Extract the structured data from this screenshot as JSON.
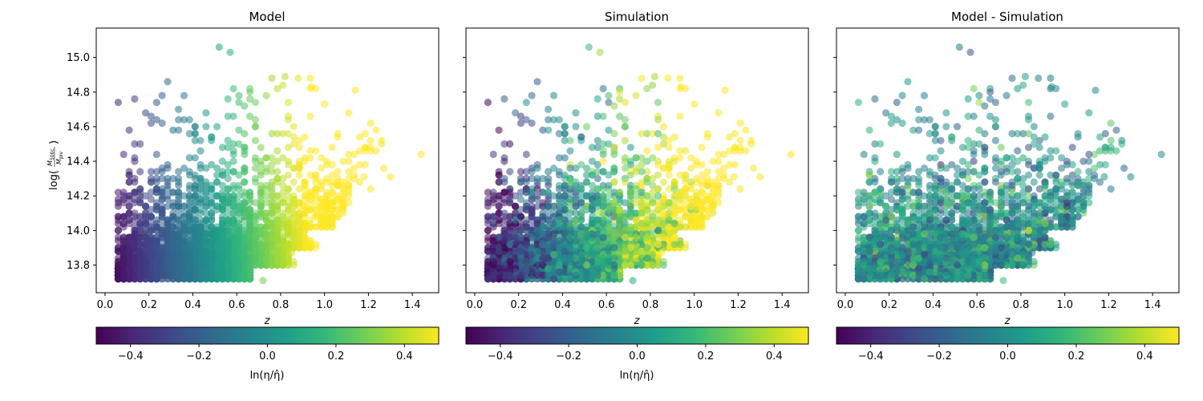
{
  "figure": {
    "ylabel": "log(M500c / Mpiv)",
    "ylabel_main": "log(",
    "ylabel_num": "M",
    "ylabel_num_sub": "500c",
    "ylabel_den": "M",
    "ylabel_den_sub": "piv",
    "ylabel_close": ")"
  },
  "chart_data": [
    {
      "type": "scatter",
      "title": "Model",
      "xlabel": "z",
      "xlim": [
        -0.04,
        1.52
      ],
      "ylim": [
        13.64,
        15.17
      ],
      "xticks": [
        "0.0",
        "0.2",
        "0.4",
        "0.6",
        "0.8",
        "1.0",
        "1.2",
        "1.4"
      ],
      "xtick_values": [
        0.0,
        0.2,
        0.4,
        0.6,
        0.8,
        1.0,
        1.2,
        1.4
      ],
      "yticks": [
        "13.8",
        "14.0",
        "14.2",
        "14.4",
        "14.6",
        "14.8",
        "15.0"
      ],
      "ytick_values": [
        13.8,
        14.0,
        14.2,
        14.4,
        14.6,
        14.8,
        15.0
      ],
      "show_yticklabels": true,
      "color_mode": "model",
      "colorbar": {
        "label": "ln(η/η̂)",
        "range": [
          -0.5,
          0.5
        ],
        "ticks": [
          "−0.4",
          "−0.2",
          "0.0",
          "0.2",
          "0.4"
        ],
        "tick_values": [
          -0.4,
          -0.2,
          0.0,
          0.2,
          0.4
        ]
      },
      "colormap": "viridis",
      "point_alpha": 0.55,
      "note": "~several thousand clusters; colour rises smoothly with z"
    },
    {
      "type": "scatter",
      "title": "Simulation",
      "xlabel": "z",
      "xlim": [
        -0.04,
        1.52
      ],
      "ylim": [
        13.64,
        15.17
      ],
      "xticks": [
        "0.0",
        "0.2",
        "0.4",
        "0.6",
        "0.8",
        "1.0",
        "1.2",
        "1.4"
      ],
      "xtick_values": [
        0.0,
        0.2,
        0.4,
        0.6,
        0.8,
        1.0,
        1.2,
        1.4
      ],
      "yticks": [
        "13.8",
        "14.0",
        "14.2",
        "14.4",
        "14.6",
        "14.8",
        "15.0"
      ],
      "ytick_values": [
        13.8,
        14.0,
        14.2,
        14.4,
        14.6,
        14.8,
        15.0
      ],
      "show_yticklabels": false,
      "color_mode": "simulation",
      "colorbar": {
        "label": "ln(η/η̂)",
        "range": [
          -0.5,
          0.5
        ],
        "ticks": [
          "−0.4",
          "−0.2",
          "0.0",
          "0.2",
          "0.4"
        ],
        "tick_values": [
          -0.4,
          -0.2,
          0.0,
          0.2,
          0.4
        ]
      },
      "colormap": "viridis",
      "point_alpha": 0.55
    },
    {
      "type": "scatter",
      "title": "Model - Simulation",
      "xlabel": "z",
      "xlim": [
        -0.04,
        1.52
      ],
      "ylim": [
        13.64,
        15.17
      ],
      "xticks": [
        "0.0",
        "0.2",
        "0.4",
        "0.6",
        "0.8",
        "1.0",
        "1.2",
        "1.4"
      ],
      "xtick_values": [
        0.0,
        0.2,
        0.4,
        0.6,
        0.8,
        1.0,
        1.2,
        1.4
      ],
      "yticks": [
        "13.8",
        "14.0",
        "14.2",
        "14.4",
        "14.6",
        "14.8",
        "15.0"
      ],
      "ytick_values": [
        13.8,
        14.0,
        14.2,
        14.4,
        14.6,
        14.8,
        15.0
      ],
      "show_yticklabels": false,
      "color_mode": "difference",
      "colorbar": {
        "label": "",
        "range": [
          -0.5,
          0.5
        ],
        "ticks": [
          "−0.4",
          "−0.2",
          "0.0",
          "0.2",
          "0.4"
        ],
        "tick_values": [
          -0.4,
          -0.2,
          0.0,
          0.2,
          0.4
        ]
      },
      "colormap": "viridis",
      "point_alpha": 0.55
    }
  ]
}
